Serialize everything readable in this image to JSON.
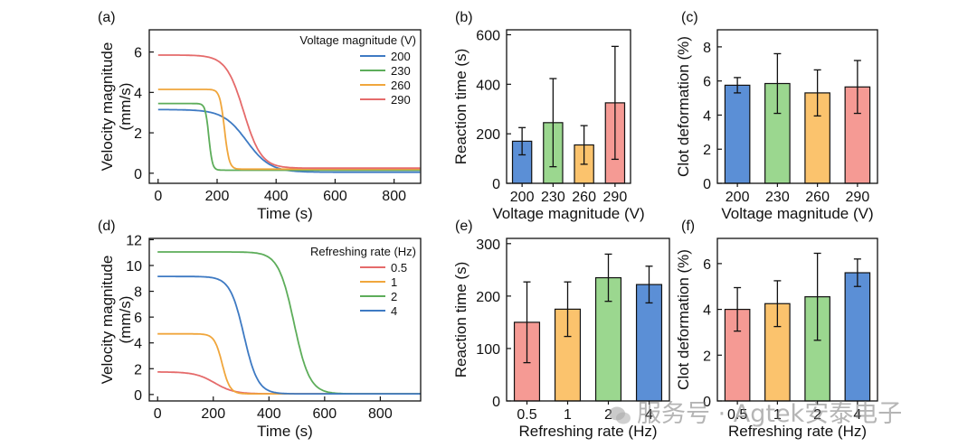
{
  "watermark": {
    "text": "服务号 · Agtek安泰电子"
  },
  "colors": {
    "blue": "#3e7ac3",
    "green": "#5dad5a",
    "orange": "#f0a63c",
    "red": "#e56b6b",
    "bar_blue": "#5b8fd6",
    "bar_green": "#9bd78f",
    "bar_orange": "#fbc36d",
    "bar_red": "#f59a94"
  },
  "chart_data": [
    {
      "id": "a",
      "panel_label": "(a)",
      "type": "line",
      "xlabel": "Time (s)",
      "ylabel": "Velocity magnitude",
      "ylabel2": "(mm/s)",
      "xlim": [
        -30,
        890
      ],
      "ylim": [
        -0.5,
        7.1
      ],
      "xticks": [
        0,
        200,
        400,
        600,
        800
      ],
      "yticks": [
        0,
        2,
        4,
        6
      ],
      "legend_title": "Voltage magnitude (V)",
      "series": [
        {
          "name": "200",
          "color": "#3e7ac3",
          "v0": 3.15,
          "vend": 0.05,
          "t_mid": 300,
          "width": 40
        },
        {
          "name": "230",
          "color": "#5dad5a",
          "v0": 3.45,
          "vend": 0.15,
          "t_mid": 172,
          "width": 6
        },
        {
          "name": "260",
          "color": "#f0a63c",
          "v0": 4.15,
          "vend": 0.2,
          "t_mid": 225,
          "width": 8
        },
        {
          "name": "290",
          "color": "#e56b6b",
          "v0": 5.85,
          "vend": 0.25,
          "t_mid": 290,
          "width": 30
        }
      ]
    },
    {
      "id": "b",
      "panel_label": "(b)",
      "type": "bar",
      "xlabel": "Voltage magnitude (V)",
      "ylabel": "Reaction time (s)",
      "ylim": [
        0,
        620
      ],
      "yticks": [
        0,
        200,
        400,
        600
      ],
      "categories": [
        "200",
        "230",
        "260",
        "290"
      ],
      "values": [
        170,
        245,
        155,
        325
      ],
      "errors": [
        55,
        178,
        78,
        228
      ],
      "colors": [
        "#5b8fd6",
        "#9bd78f",
        "#fbc36d",
        "#f59a94"
      ]
    },
    {
      "id": "c",
      "panel_label": "(c)",
      "type": "bar",
      "xlabel": "Voltage magnitude (V)",
      "ylabel": "Clot deformation (%)",
      "ylim": [
        0,
        9
      ],
      "yticks": [
        0,
        2,
        4,
        6,
        8
      ],
      "categories": [
        "200",
        "230",
        "260",
        "290"
      ],
      "values": [
        5.75,
        5.85,
        5.3,
        5.65
      ],
      "errors": [
        0.45,
        1.75,
        1.35,
        1.55
      ],
      "colors": [
        "#5b8fd6",
        "#9bd78f",
        "#fbc36d",
        "#f59a94"
      ]
    },
    {
      "id": "d",
      "panel_label": "(d)",
      "type": "line",
      "xlabel": "Time (s)",
      "ylabel": "Velocity magnitude",
      "ylabel2": "(mm/s)",
      "xlim": [
        -30,
        945
      ],
      "ylim": [
        -0.5,
        12.1
      ],
      "xticks": [
        0,
        200,
        400,
        600,
        800
      ],
      "yticks": [
        0,
        2,
        4,
        6,
        8,
        10,
        12
      ],
      "legend_title": "Refreshing rate (Hz)",
      "series": [
        {
          "name": "0.5",
          "color": "#e56b6b",
          "v0": 1.75,
          "vend": 0.05,
          "t_mid": 205,
          "width": 35
        },
        {
          "name": "1",
          "color": "#f0a63c",
          "v0": 4.7,
          "vend": 0.05,
          "t_mid": 232,
          "width": 14
        },
        {
          "name": "2",
          "color": "#5dad5a",
          "v0": 11.05,
          "vend": 0.05,
          "t_mid": 490,
          "width": 28
        },
        {
          "name": "4",
          "color": "#3e7ac3",
          "v0": 9.15,
          "vend": 0.05,
          "t_mid": 310,
          "width": 25
        }
      ]
    },
    {
      "id": "e",
      "panel_label": "(e)",
      "type": "bar",
      "xlabel": "Refreshing rate (Hz)",
      "ylabel": "Reaction time (s)",
      "ylim": [
        0,
        310
      ],
      "yticks": [
        0,
        100,
        200,
        300
      ],
      "categories": [
        "0.5",
        "1",
        "2",
        "4"
      ],
      "values": [
        150,
        175,
        235,
        222
      ],
      "errors": [
        77,
        52,
        45,
        35
      ],
      "colors": [
        "#f59a94",
        "#fbc36d",
        "#9bd78f",
        "#5b8fd6"
      ]
    },
    {
      "id": "f",
      "panel_label": "(f)",
      "type": "bar",
      "xlabel": "Refreshing rate (Hz)",
      "ylabel": "Clot deformation (%)",
      "ylim": [
        0,
        7.1
      ],
      "yticks": [
        0,
        2,
        4,
        6
      ],
      "categories": [
        "0.5",
        "1",
        "2",
        "4"
      ],
      "values": [
        4.0,
        4.25,
        4.55,
        5.6
      ],
      "errors": [
        0.95,
        1.0,
        1.9,
        0.6
      ],
      "colors": [
        "#f59a94",
        "#fbc36d",
        "#9bd78f",
        "#5b8fd6"
      ]
    }
  ]
}
